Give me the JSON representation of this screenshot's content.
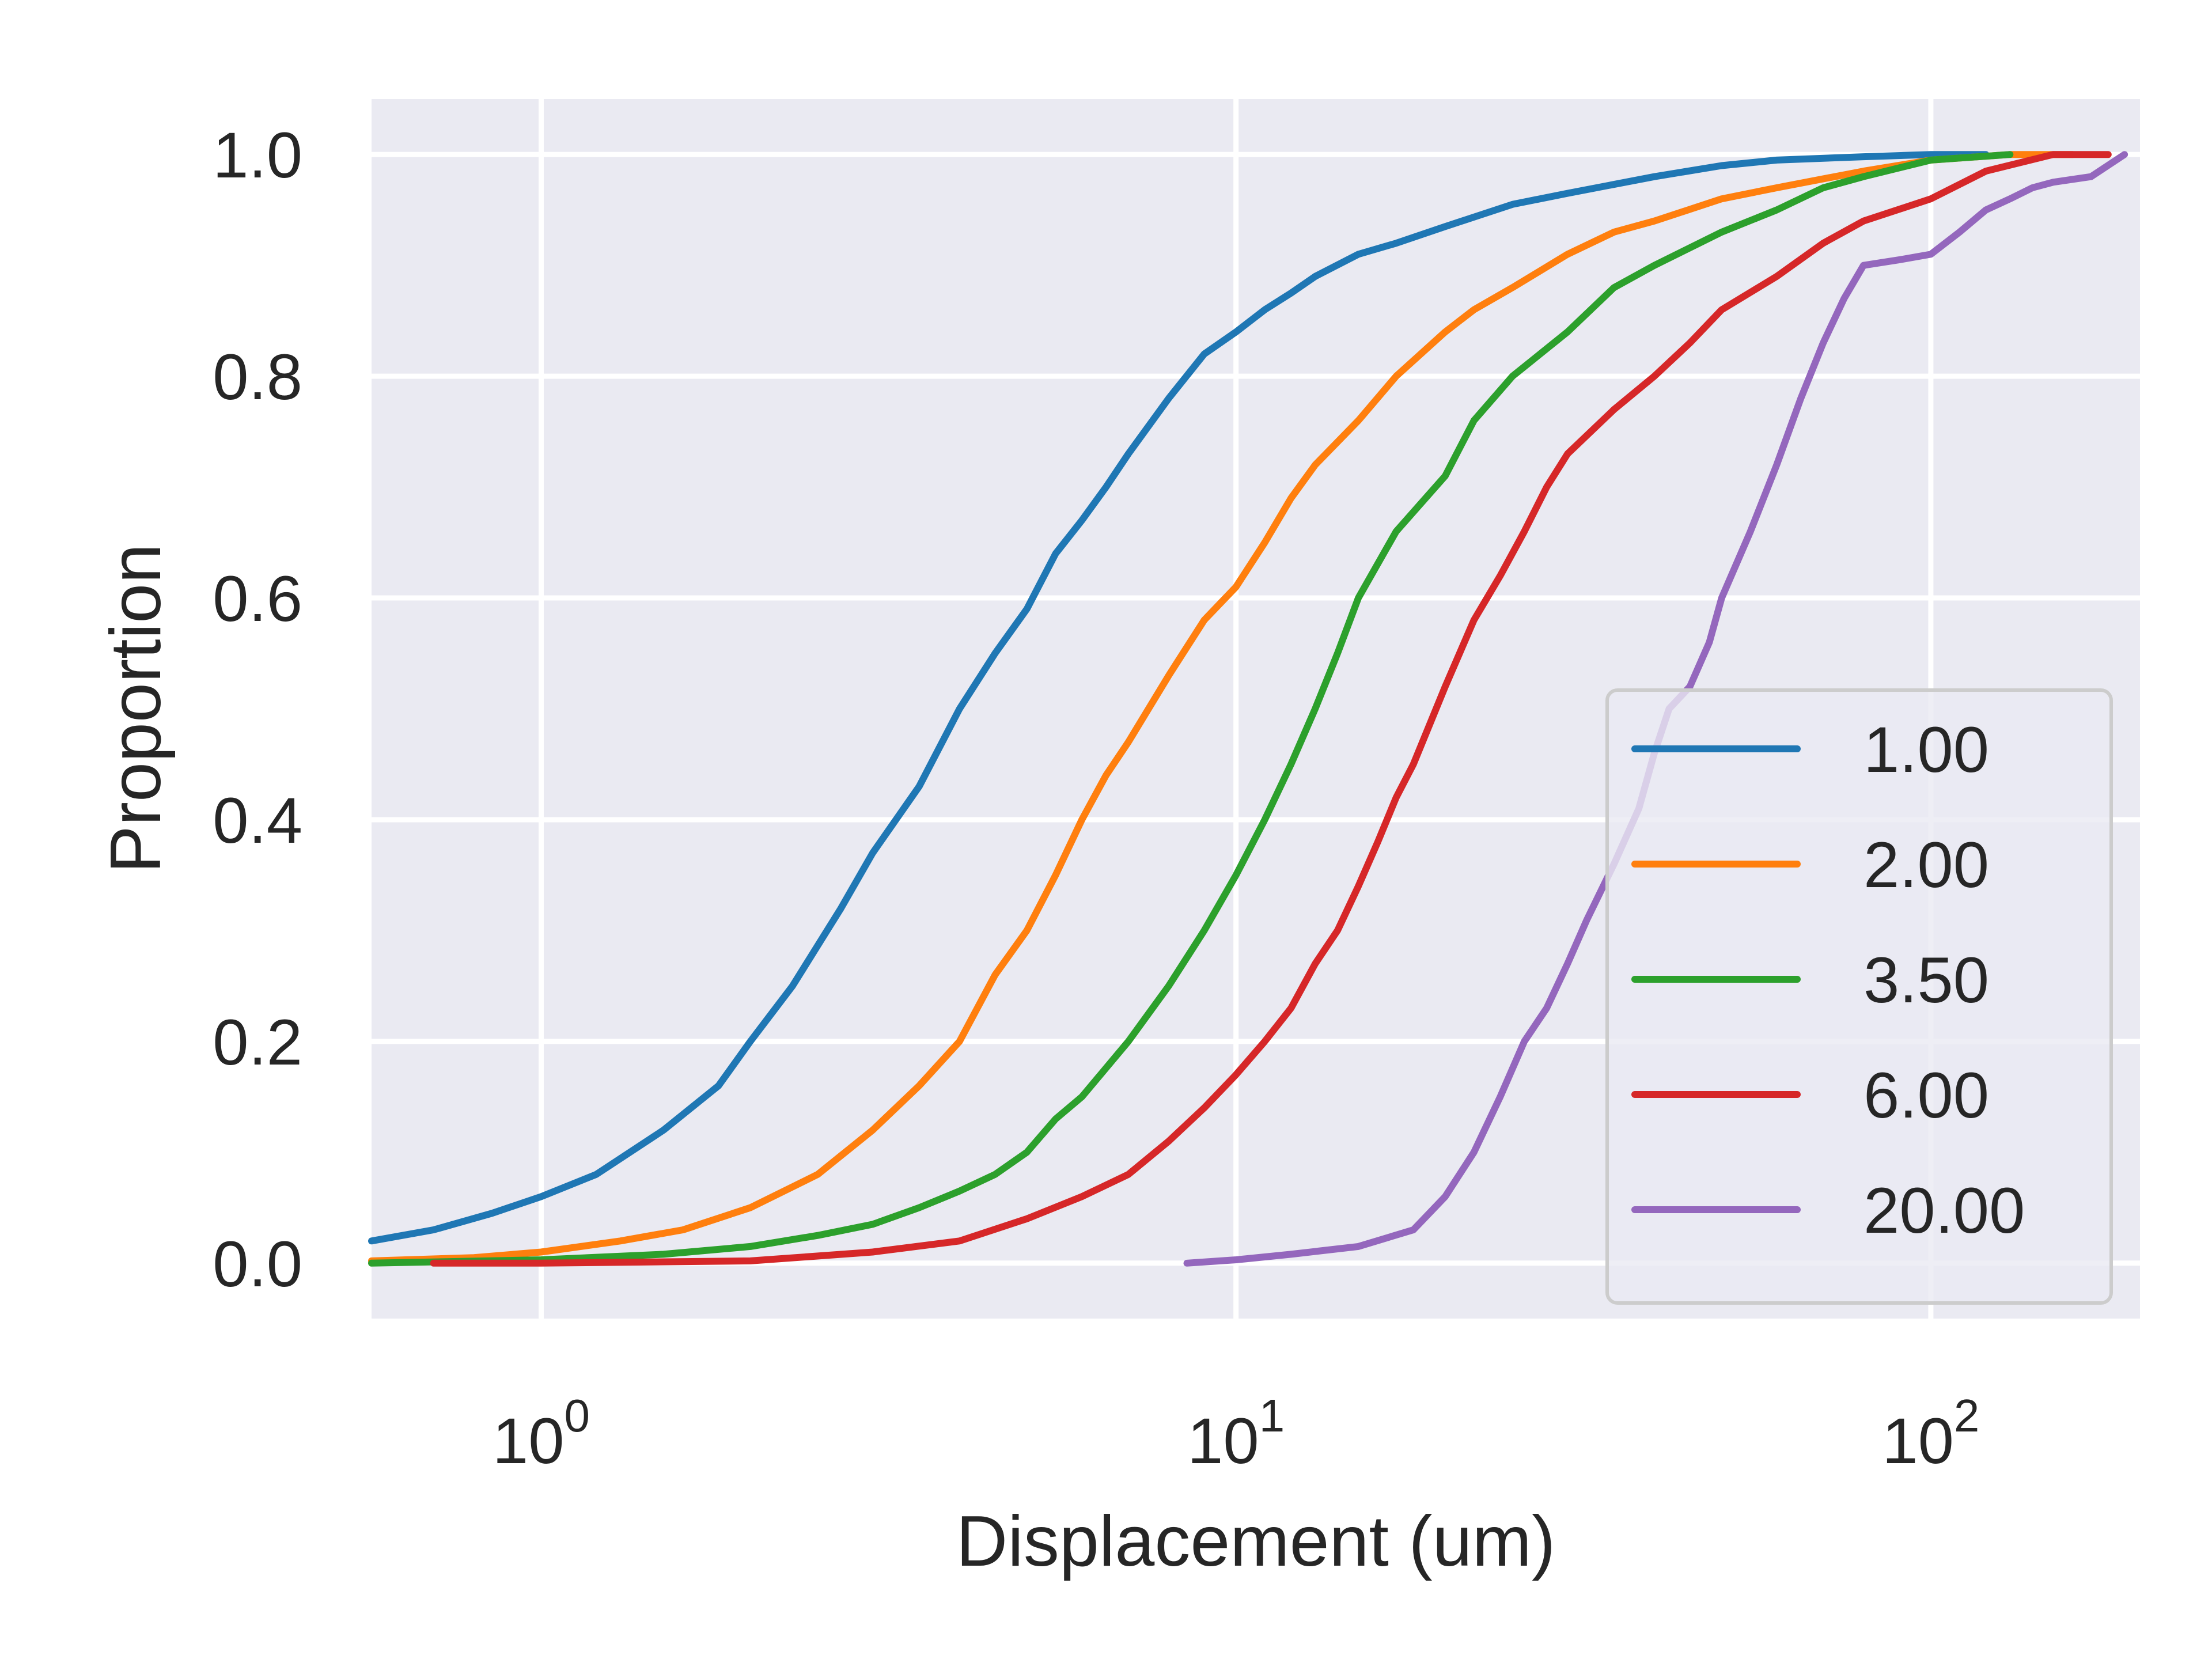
{
  "chart_data": {
    "type": "line",
    "title": "",
    "xlabel": "Displacement (um)",
    "ylabel": "Proportion",
    "xscale": "log",
    "xlim": [
      0.57,
      200
    ],
    "ylim": [
      -0.05,
      1.05
    ],
    "xticks": [
      {
        "value": 1,
        "base": "10",
        "exp": "0"
      },
      {
        "value": 10,
        "base": "10",
        "exp": "1"
      },
      {
        "value": 100,
        "base": "10",
        "exp": "2"
      }
    ],
    "yticks": [
      {
        "value": 0.0,
        "label": "0.0"
      },
      {
        "value": 0.2,
        "label": "0.2"
      },
      {
        "value": 0.4,
        "label": "0.4"
      },
      {
        "value": 0.6,
        "label": "0.6"
      },
      {
        "value": 0.8,
        "label": "0.8"
      },
      {
        "value": 1.0,
        "label": "1.0"
      }
    ],
    "grid": true,
    "background": "#eaeaf2",
    "legend_position": "lower-right",
    "series": [
      {
        "name": "1.00",
        "color": "#1f77b4",
        "x": [
          0.57,
          0.7,
          0.85,
          1.0,
          1.2,
          1.5,
          1.8,
          2.0,
          2.3,
          2.7,
          3.0,
          3.5,
          4.0,
          4.5,
          5.0,
          5.5,
          6.0,
          6.5,
          7.0,
          8.0,
          9.0,
          10.0,
          11.0,
          12.0,
          13.0,
          15.0,
          17.0,
          20.0,
          25.0,
          30.0,
          40.0,
          50.0,
          60.0,
          80.0,
          100.0,
          120.0
        ],
        "y": [
          0.02,
          0.03,
          0.045,
          0.06,
          0.08,
          0.12,
          0.16,
          0.2,
          0.25,
          0.32,
          0.37,
          0.43,
          0.5,
          0.55,
          0.59,
          0.64,
          0.67,
          0.7,
          0.73,
          0.78,
          0.82,
          0.84,
          0.86,
          0.875,
          0.89,
          0.91,
          0.92,
          0.935,
          0.955,
          0.965,
          0.98,
          0.99,
          0.995,
          0.998,
          1.0,
          1.0
        ]
      },
      {
        "name": "2.00",
        "color": "#ff7f0e",
        "x": [
          0.57,
          0.8,
          1.0,
          1.3,
          1.6,
          2.0,
          2.5,
          3.0,
          3.5,
          4.0,
          4.5,
          5.0,
          5.5,
          6.0,
          6.5,
          7.0,
          8.0,
          9.0,
          10.0,
          11.0,
          12.0,
          13.0,
          15.0,
          17.0,
          20.0,
          22.0,
          25.0,
          30.0,
          35.0,
          40.0,
          50.0,
          60.0,
          80.0,
          100.0,
          130.0,
          160.0
        ],
        "y": [
          0.002,
          0.005,
          0.01,
          0.02,
          0.03,
          0.05,
          0.08,
          0.12,
          0.16,
          0.2,
          0.26,
          0.3,
          0.35,
          0.4,
          0.44,
          0.47,
          0.53,
          0.58,
          0.61,
          0.65,
          0.69,
          0.72,
          0.76,
          0.8,
          0.84,
          0.86,
          0.88,
          0.91,
          0.93,
          0.94,
          0.96,
          0.97,
          0.985,
          0.995,
          1.0,
          1.0
        ]
      },
      {
        "name": "3.50",
        "color": "#2ca02c",
        "x": [
          0.57,
          1.0,
          1.5,
          2.0,
          2.5,
          3.0,
          3.5,
          4.0,
          4.5,
          5.0,
          5.5,
          6.0,
          7.0,
          8.0,
          9.0,
          10.0,
          11.0,
          12.0,
          13.0,
          14.0,
          15.0,
          17.0,
          20.0,
          22.0,
          25.0,
          30.0,
          35.0,
          40.0,
          50.0,
          60.0,
          70.0,
          80.0,
          100.0,
          130.0
        ],
        "y": [
          0.0,
          0.003,
          0.008,
          0.015,
          0.025,
          0.035,
          0.05,
          0.065,
          0.08,
          0.1,
          0.13,
          0.15,
          0.2,
          0.25,
          0.3,
          0.35,
          0.4,
          0.45,
          0.5,
          0.55,
          0.6,
          0.66,
          0.71,
          0.76,
          0.8,
          0.84,
          0.88,
          0.9,
          0.93,
          0.95,
          0.97,
          0.98,
          0.995,
          1.0
        ]
      },
      {
        "name": "6.00",
        "color": "#d62728",
        "x": [
          0.7,
          1.0,
          2.0,
          3.0,
          4.0,
          5.0,
          6.0,
          7.0,
          8.0,
          9.0,
          10.0,
          11.0,
          12.0,
          13.0,
          14.0,
          15.0,
          16.0,
          17.0,
          18.0,
          20.0,
          22.0,
          24.0,
          26.0,
          28.0,
          30.0,
          35.0,
          40.0,
          45.0,
          50.0,
          60.0,
          70.0,
          80.0,
          100.0,
          120.0,
          150.0,
          180.0
        ],
        "y": [
          0.0,
          0.0,
          0.002,
          0.01,
          0.02,
          0.04,
          0.06,
          0.08,
          0.11,
          0.14,
          0.17,
          0.2,
          0.23,
          0.27,
          0.3,
          0.34,
          0.38,
          0.42,
          0.45,
          0.52,
          0.58,
          0.62,
          0.66,
          0.7,
          0.73,
          0.77,
          0.8,
          0.83,
          0.86,
          0.89,
          0.92,
          0.94,
          0.96,
          0.985,
          1.0,
          1.0
        ]
      },
      {
        "name": "20.00",
        "color": "#9467bd",
        "x": [
          8.5,
          10.0,
          12.0,
          15.0,
          18.0,
          20.0,
          22.0,
          24.0,
          26.0,
          28.0,
          30.0,
          32.0,
          35.0,
          38.0,
          40.0,
          42.0,
          45.0,
          48.0,
          50.0,
          55.0,
          60.0,
          65.0,
          70.0,
          75.0,
          80.0,
          90.0,
          100.0,
          110.0,
          120.0,
          130.0,
          140.0,
          150.0,
          170.0,
          190.0
        ],
        "y": [
          0.0,
          0.003,
          0.008,
          0.015,
          0.03,
          0.06,
          0.1,
          0.15,
          0.2,
          0.23,
          0.27,
          0.31,
          0.36,
          0.41,
          0.46,
          0.5,
          0.52,
          0.56,
          0.6,
          0.66,
          0.72,
          0.78,
          0.83,
          0.87,
          0.9,
          0.905,
          0.91,
          0.93,
          0.95,
          0.96,
          0.97,
          0.975,
          0.98,
          1.0
        ]
      }
    ]
  }
}
